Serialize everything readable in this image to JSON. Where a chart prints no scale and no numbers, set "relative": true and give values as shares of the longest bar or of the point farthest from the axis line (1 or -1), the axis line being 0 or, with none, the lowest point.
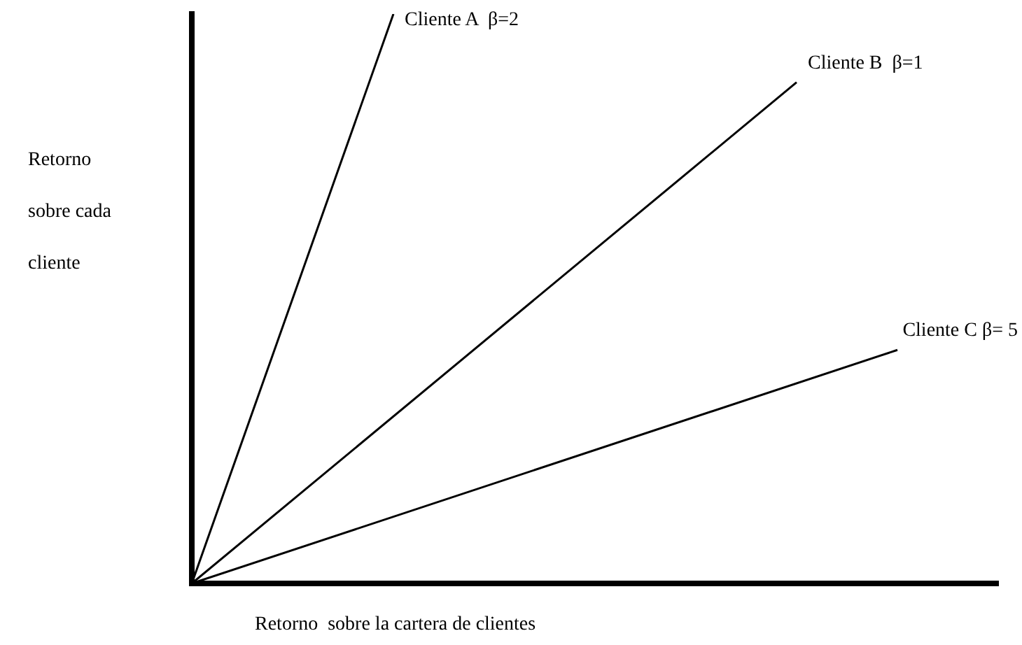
{
  "chart_data": {
    "type": "line",
    "relative": true,
    "xlabel": "Retorno  sobre la cartera de clientes",
    "ylabel": "Retorno sobre cada cliente",
    "categories": [
      null,
      null,
      null,
      null,
      null,
      null,
      null,
      null,
      null
    ],
    "series": [
      {
        "name": "Cliente A  β=2",
        "color": "#000000",
        "values": [
          0,
          null,
          1,
          null,
          null,
          null,
          null,
          null,
          null
        ]
      },
      {
        "name": "Cliente B  β=1",
        "color": "#000000",
        "values": [
          0,
          null,
          null,
          null,
          null,
          null,
          0.88,
          null,
          null
        ]
      },
      {
        "name": "Cliente C β= 5",
        "color": "#000000",
        "values": [
          0,
          null,
          null,
          null,
          null,
          null,
          null,
          0.41,
          null
        ]
      }
    ]
  }
}
